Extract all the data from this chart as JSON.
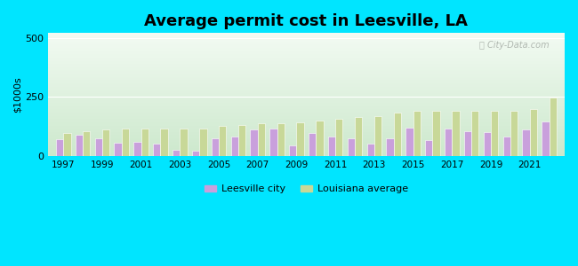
{
  "title": "Average permit cost in Leesville, LA",
  "ylabel": "$1000s",
  "years": [
    1997,
    1998,
    1999,
    2000,
    2001,
    2002,
    2003,
    2004,
    2005,
    2006,
    2007,
    2008,
    2009,
    2010,
    2011,
    2012,
    2013,
    2014,
    2015,
    2016,
    2017,
    2018,
    2019,
    2020,
    2021,
    2022
  ],
  "leesville": [
    70,
    90,
    75,
    55,
    60,
    50,
    25,
    20,
    75,
    80,
    110,
    115,
    45,
    95,
    80,
    75,
    50,
    75,
    120,
    68,
    115,
    105,
    100,
    80,
    110,
    145
  ],
  "louisiana": [
    95,
    105,
    110,
    115,
    115,
    115,
    115,
    115,
    125,
    130,
    140,
    140,
    143,
    150,
    158,
    163,
    170,
    182,
    192,
    192,
    192,
    192,
    192,
    192,
    200,
    248
  ],
  "leesville_color": "#c9a0dc",
  "louisiana_color": "#c8d898",
  "bg_top_color": "#f0faf0",
  "bg_bottom_color": "#d8edd8",
  "outer_bg": "#00e5ff",
  "yticks": [
    0,
    250,
    500
  ],
  "xticks": [
    1997,
    1999,
    2001,
    2003,
    2005,
    2007,
    2009,
    2011,
    2013,
    2015,
    2017,
    2019,
    2021
  ],
  "title_fontsize": 13,
  "bar_width": 0.38,
  "ylim": 520,
  "figsize": [
    6.5,
    3.0
  ],
  "dpi": 100
}
